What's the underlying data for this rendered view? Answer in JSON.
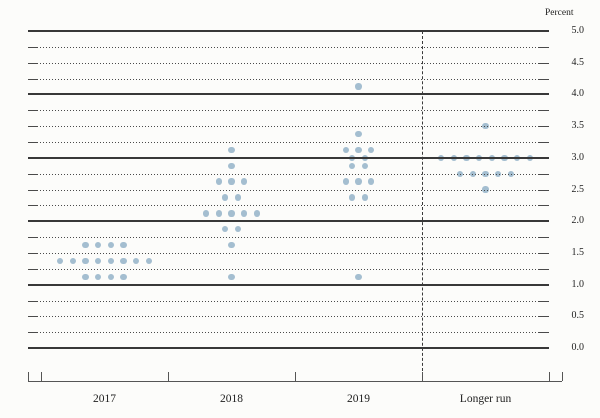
{
  "chart_data": {
    "type": "scatter",
    "subtype": "fomc-dot-plot",
    "unit_label": "Percent",
    "y_range": [
      0.0,
      5.0
    ],
    "y_gridline_step": 0.25,
    "y_label_step": 0.5,
    "solid_gridlines_at": [
      5.0,
      4.0,
      3.0,
      2.0,
      1.0,
      0.0
    ],
    "y_tick_labels": [
      "5.0",
      "4.5",
      "4.0",
      "3.5",
      "3.0",
      "2.5",
      "2.0",
      "1.5",
      "1.0",
      "0.5",
      "0.0"
    ],
    "categories": [
      "2017",
      "2018",
      "2019",
      "Longer run"
    ],
    "legend_position": "none",
    "grid": "dotted-quarters-solid-integers",
    "dot_color": "#9cb9cc",
    "series": [
      {
        "category": "2017",
        "dots": [
          {
            "value": 1.625,
            "count": 4
          },
          {
            "value": 1.375,
            "count": 8
          },
          {
            "value": 1.125,
            "count": 4
          }
        ]
      },
      {
        "category": "2018",
        "dots": [
          {
            "value": 3.125,
            "count": 1
          },
          {
            "value": 2.875,
            "count": 1
          },
          {
            "value": 2.625,
            "count": 3
          },
          {
            "value": 2.375,
            "count": 2
          },
          {
            "value": 2.125,
            "count": 5
          },
          {
            "value": 1.875,
            "count": 2
          },
          {
            "value": 1.625,
            "count": 1
          },
          {
            "value": 1.125,
            "count": 1
          }
        ]
      },
      {
        "category": "2019",
        "dots": [
          {
            "value": 4.125,
            "count": 1
          },
          {
            "value": 3.375,
            "count": 1
          },
          {
            "value": 3.125,
            "count": 3
          },
          {
            "value": 3.0,
            "count": 2
          },
          {
            "value": 2.875,
            "count": 2
          },
          {
            "value": 2.625,
            "count": 3
          },
          {
            "value": 2.375,
            "count": 2
          },
          {
            "value": 1.125,
            "count": 1
          }
        ]
      },
      {
        "category": "Longer run",
        "dots": [
          {
            "value": 3.5,
            "count": 1
          },
          {
            "value": 3.0,
            "count": 8
          },
          {
            "value": 2.75,
            "count": 5
          },
          {
            "value": 2.5,
            "count": 1
          }
        ]
      }
    ]
  }
}
